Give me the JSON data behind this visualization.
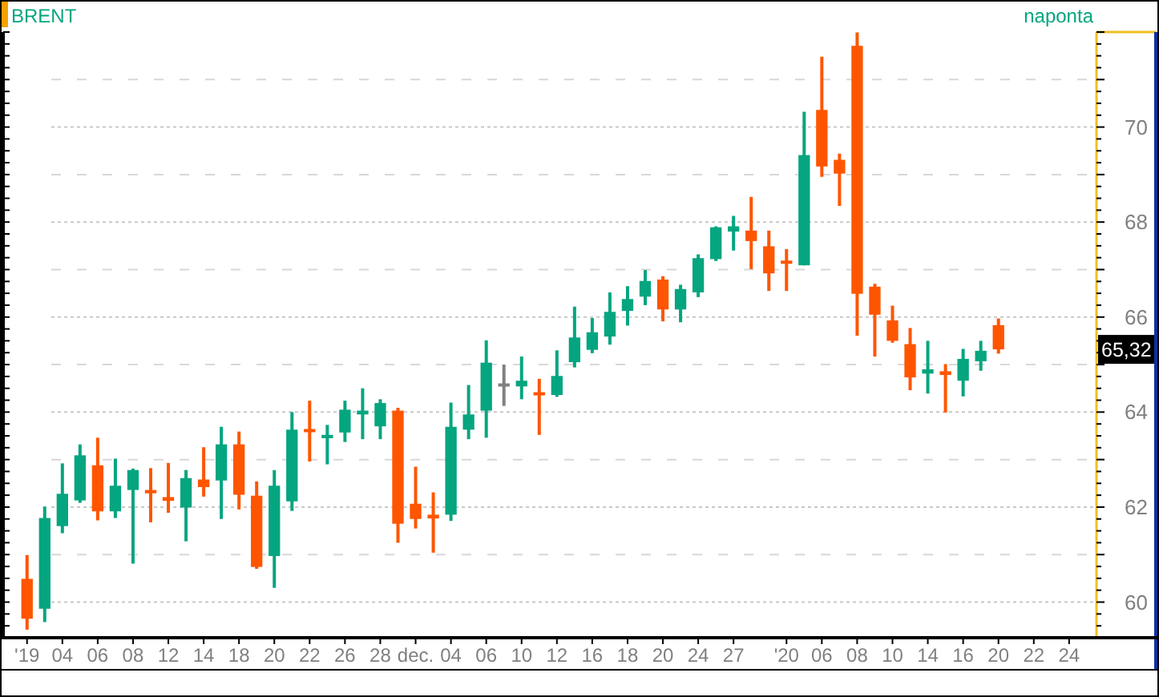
{
  "chart_data": {
    "type": "candlestick",
    "title": "BRENT",
    "subtitle": "naponta",
    "categories": [
      "'19",
      null,
      "04",
      null,
      "06",
      null,
      "08",
      null,
      "12",
      null,
      "14",
      null,
      "18",
      null,
      "20",
      null,
      "22",
      null,
      "26",
      null,
      "28",
      null,
      "dec.",
      null,
      "04",
      null,
      "06",
      null,
      "10",
      null,
      "12",
      null,
      "16",
      null,
      "18",
      null,
      "20",
      null,
      "24",
      null,
      "27",
      null,
      null,
      "'20",
      null,
      "06",
      null,
      "08",
      null,
      "10",
      null,
      "14",
      null,
      "16",
      null,
      "20",
      null,
      "22",
      null,
      "24"
    ],
    "ohlc": [
      [
        60.49,
        60.99,
        59.42,
        59.65
      ],
      [
        59.86,
        62.01,
        59.58,
        61.77
      ],
      [
        61.6,
        62.92,
        61.45,
        62.28
      ],
      [
        62.14,
        63.32,
        62.09,
        63.09
      ],
      [
        62.88,
        63.46,
        61.72,
        61.91
      ],
      [
        61.91,
        63.02,
        61.77,
        62.45
      ],
      [
        62.36,
        62.81,
        60.81,
        62.78
      ],
      [
        62.36,
        62.82,
        61.68,
        62.29
      ],
      [
        62.21,
        62.93,
        61.88,
        62.13
      ],
      [
        61.99,
        62.78,
        61.28,
        62.61
      ],
      [
        62.58,
        63.26,
        62.22,
        62.42
      ],
      [
        62.56,
        63.69,
        61.75,
        63.32
      ],
      [
        63.32,
        63.59,
        61.95,
        62.26
      ],
      [
        62.24,
        62.54,
        60.7,
        60.74
      ],
      [
        60.97,
        62.78,
        60.3,
        62.45
      ],
      [
        62.12,
        64.0,
        61.92,
        63.63
      ],
      [
        63.64,
        64.24,
        62.96,
        63.58
      ],
      [
        63.45,
        63.73,
        62.9,
        63.52
      ],
      [
        63.57,
        64.24,
        63.37,
        64.05
      ],
      [
        63.95,
        64.5,
        63.43,
        64.03
      ],
      [
        63.7,
        64.27,
        63.43,
        64.19
      ],
      [
        64.03,
        64.09,
        61.25,
        61.65
      ],
      [
        62.07,
        62.85,
        61.55,
        61.75
      ],
      [
        61.84,
        62.31,
        61.04,
        61.76
      ],
      [
        61.84,
        64.2,
        61.71,
        63.69
      ],
      [
        63.63,
        64.57,
        63.43,
        63.95
      ],
      [
        64.03,
        65.51,
        63.46,
        65.04
      ],
      [
        64.55,
        65.0,
        64.13,
        64.59
      ],
      [
        64.54,
        65.17,
        64.27,
        64.66
      ],
      [
        64.4,
        64.7,
        63.52,
        64.37
      ],
      [
        64.36,
        65.3,
        64.32,
        64.76
      ],
      [
        65.05,
        66.22,
        64.94,
        65.57
      ],
      [
        65.31,
        65.98,
        65.24,
        65.68
      ],
      [
        65.59,
        66.52,
        65.42,
        66.11
      ],
      [
        66.13,
        66.65,
        65.82,
        66.38
      ],
      [
        66.43,
        66.99,
        66.25,
        66.76
      ],
      [
        66.79,
        66.86,
        65.91,
        66.16
      ],
      [
        66.16,
        66.68,
        65.89,
        66.59
      ],
      [
        66.52,
        67.32,
        66.42,
        67.24
      ],
      [
        67.22,
        67.91,
        67.18,
        67.89
      ],
      [
        67.8,
        68.13,
        67.4,
        67.91
      ],
      [
        67.82,
        68.53,
        67.01,
        67.6
      ],
      [
        67.49,
        67.82,
        66.55,
        66.92
      ],
      [
        67.18,
        67.43,
        66.55,
        67.13
      ],
      [
        67.09,
        70.32,
        67.09,
        69.41
      ],
      [
        70.36,
        71.48,
        68.95,
        69.17
      ],
      [
        69.31,
        69.44,
        68.34,
        69.02
      ],
      [
        71.71,
        71.99,
        65.61,
        66.49
      ],
      [
        66.64,
        66.7,
        65.17,
        66.05
      ],
      [
        65.93,
        66.24,
        65.46,
        65.5
      ],
      [
        65.43,
        65.77,
        64.46,
        64.73
      ],
      [
        64.81,
        65.5,
        64.39,
        64.9
      ],
      [
        64.86,
        65.01,
        63.99,
        64.78
      ],
      [
        64.66,
        65.33,
        64.33,
        65.12
      ],
      [
        65.07,
        65.5,
        64.87,
        65.29
      ],
      [
        65.83,
        65.97,
        65.23,
        65.32
      ],
      null,
      null,
      null,
      null
    ],
    "colors": [
      "#ff5500",
      "#05a580",
      "#05a580",
      "#05a580",
      "#ff5500",
      "#05a580",
      "#05a580",
      "#ff5500",
      "#ff5500",
      "#05a580",
      "#ff5500",
      "#05a580",
      "#ff5500",
      "#ff5500",
      "#05a580",
      "#05a580",
      "#ff5500",
      "#05a580",
      "#05a580",
      "#05a580",
      "#05a580",
      "#ff5500",
      "#ff5500",
      "#ff5500",
      "#05a580",
      "#05a580",
      "#05a580",
      "#808080",
      "#05a580",
      "#ff5500",
      "#05a580",
      "#05a580",
      "#05a580",
      "#05a580",
      "#05a580",
      "#05a580",
      "#ff5500",
      "#05a580",
      "#05a580",
      "#05a580",
      "#05a580",
      "#ff5500",
      "#ff5500",
      "#ff5500",
      "#05a580",
      "#ff5500",
      "#ff5500",
      "#ff5500",
      "#ff5500",
      "#ff5500",
      "#ff5500",
      "#05a580",
      "#ff5500",
      "#05a580",
      "#05a580",
      "#ff5500",
      null,
      null,
      null,
      null
    ],
    "ylim": [
      59.25,
      72.0
    ],
    "yticks": [
      60,
      {
        "value": 61,
        "label": null
      },
      62,
      {
        "value": 63,
        "label": null
      },
      64,
      {
        "value": 65,
        "label": null
      },
      66,
      {
        "value": 67,
        "label": null
      },
      68,
      {
        "value": 69,
        "label": null
      },
      70,
      {
        "value": 71,
        "label": null
      }
    ],
    "grid": "y",
    "annotations": [
      "65,32"
    ]
  }
}
